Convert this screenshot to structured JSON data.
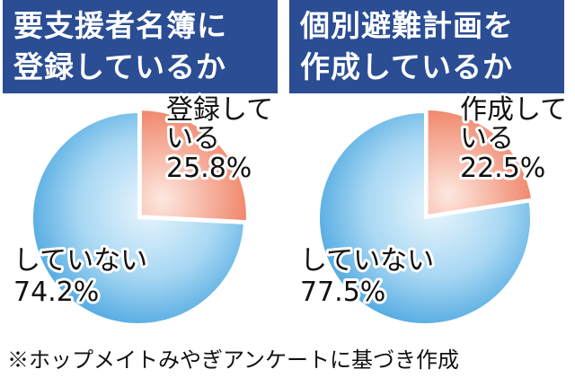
{
  "chart_data": [
    {
      "type": "pie",
      "title": "要支援者名簿に登録しているか",
      "title_lines": [
        "要支援者名簿に",
        "登録しているか"
      ],
      "slices": [
        {
          "label": "登録している",
          "label_lines": [
            "登録して",
            "いる"
          ],
          "value": 25.8,
          "value_label": "25.8%",
          "color": "#f08a6e"
        },
        {
          "label": "していない",
          "label_lines": [
            "していない"
          ],
          "value": 74.2,
          "value_label": "74.2%",
          "color": "#5bb2e6"
        }
      ]
    },
    {
      "type": "pie",
      "title": "個別避難計画を作成しているか",
      "title_lines": [
        "個別避難計画を",
        "作成しているか"
      ],
      "slices": [
        {
          "label": "作成している",
          "label_lines": [
            "作成して",
            "いる"
          ],
          "value": 22.5,
          "value_label": "22.5%",
          "color": "#f08a6e"
        },
        {
          "label": "していない",
          "label_lines": [
            "していない"
          ],
          "value": 77.5,
          "value_label": "77.5%",
          "color": "#5bb2e6"
        }
      ]
    }
  ],
  "footnote": "※ホップメイトみやぎアンケートに基づき作成"
}
